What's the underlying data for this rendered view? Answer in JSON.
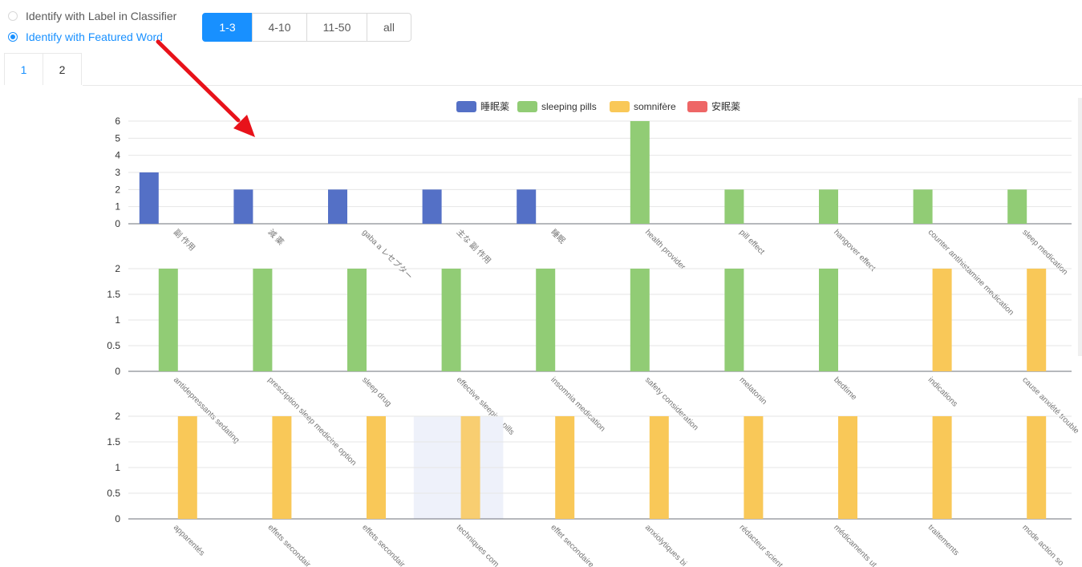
{
  "controls": {
    "radio_options": [
      {
        "label": "Identify with Label in Classifier",
        "checked": false
      },
      {
        "label": "Identify with Featured Word",
        "checked": true
      }
    ],
    "range_buttons": [
      {
        "label": "1-3",
        "active": true
      },
      {
        "label": "4-10",
        "active": false
      },
      {
        "label": "11-50",
        "active": false
      },
      {
        "label": "all",
        "active": false
      }
    ],
    "tabs": [
      {
        "label": "1",
        "active": true
      },
      {
        "label": "2",
        "active": false
      }
    ]
  },
  "colors": {
    "accent": "#1890ff",
    "annotation_arrow": "#e8121a",
    "hover_band": "#eef1fa"
  },
  "chart_data": {
    "type": "bar",
    "legend": [
      {
        "name": "睡眠薬",
        "color": "#5470c6"
      },
      {
        "name": "sleeping pills",
        "color": "#91cc75"
      },
      {
        "name": "somnifère",
        "color": "#f9c858"
      },
      {
        "name": "安眠薬",
        "color": "#ee6666"
      }
    ],
    "legend_position": "top-center",
    "grid": true,
    "panels": [
      {
        "ylim": [
          0,
          6
        ],
        "yticks": [
          "0",
          "1",
          "2",
          "3",
          "4",
          "5",
          "6"
        ],
        "categories": [
          "副 作用",
          "減 薬",
          "gaba a レセプター",
          "主な 副 作用",
          "睡眠",
          "health provider",
          "pill effect",
          "hangover effect",
          "counter antihistamine medication",
          "sleep medication"
        ],
        "bars": [
          {
            "series": "睡眠薬",
            "value": 3
          },
          {
            "series": "睡眠薬",
            "value": 2
          },
          {
            "series": "睡眠薬",
            "value": 2
          },
          {
            "series": "睡眠薬",
            "value": 2
          },
          {
            "series": "睡眠薬",
            "value": 2
          },
          {
            "series": "sleeping pills",
            "value": 6
          },
          {
            "series": "sleeping pills",
            "value": 2
          },
          {
            "series": "sleeping pills",
            "value": 2
          },
          {
            "series": "sleeping pills",
            "value": 2
          },
          {
            "series": "sleeping pills",
            "value": 2
          }
        ]
      },
      {
        "ylim": [
          0,
          2
        ],
        "yticks": [
          "0",
          "0.5",
          "1",
          "1.5",
          "2"
        ],
        "categories": [
          "antidepressants sedating",
          "prescription sleep medicine option",
          "sleep drug",
          "effective sleeping pills",
          "insomnia medication",
          "safety consideration",
          "melatonin",
          "bedtime",
          "indications",
          "cause anxiété trouble"
        ],
        "bars": [
          {
            "series": "sleeping pills",
            "value": 2
          },
          {
            "series": "sleeping pills",
            "value": 2
          },
          {
            "series": "sleeping pills",
            "value": 2
          },
          {
            "series": "sleeping pills",
            "value": 2
          },
          {
            "series": "sleeping pills",
            "value": 2
          },
          {
            "series": "sleeping pills",
            "value": 2
          },
          {
            "series": "sleeping pills",
            "value": 2
          },
          {
            "series": "sleeping pills",
            "value": 2
          },
          {
            "series": "somnifère",
            "value": 2
          },
          {
            "series": "somnifère",
            "value": 2
          }
        ]
      },
      {
        "ylim": [
          0,
          2
        ],
        "yticks": [
          "0",
          "0.5",
          "1",
          "1.5",
          "2"
        ],
        "categories": [
          "apparentés",
          "effets secondair",
          "effets secondair",
          "techniques com",
          "effet secondaire",
          "anxiolytiques bi",
          "rédacteur scient",
          "médicaments ut",
          "traitements",
          "mode action so"
        ],
        "bars": [
          {
            "series": "somnifère",
            "value": 2
          },
          {
            "series": "somnifère",
            "value": 2
          },
          {
            "series": "somnifère",
            "value": 2
          },
          {
            "series": "somnifère",
            "value": 2
          },
          {
            "series": "somnifère",
            "value": 2
          },
          {
            "series": "somnifère",
            "value": 2
          },
          {
            "series": "somnifère",
            "value": 2
          },
          {
            "series": "somnifère",
            "value": 2
          },
          {
            "series": "somnifère",
            "value": 2
          },
          {
            "series": "somnifère",
            "value": 2
          }
        ],
        "hovered_index": 3
      }
    ]
  }
}
